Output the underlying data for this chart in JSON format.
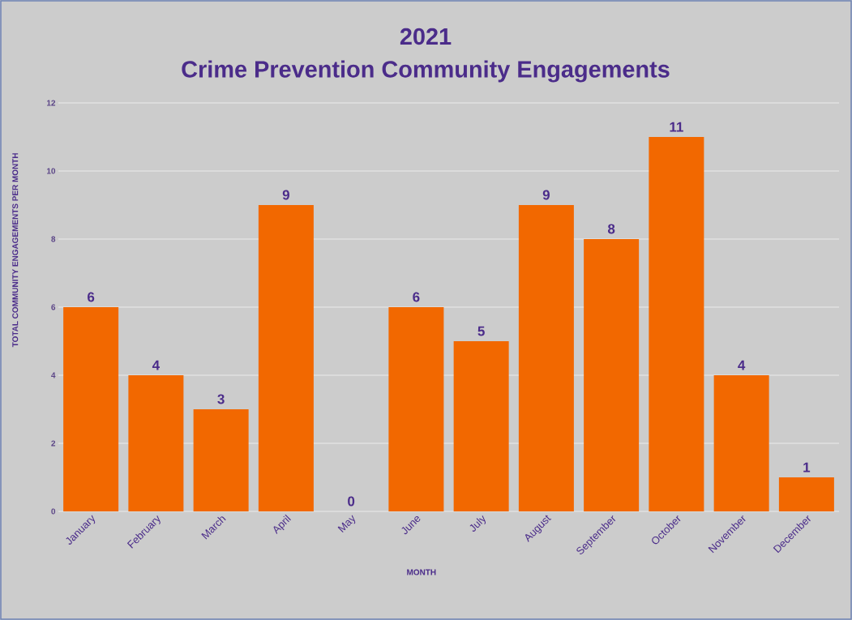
{
  "chart_data": {
    "type": "bar",
    "title": "2021",
    "subtitle": "Crime Prevention Community Engagements",
    "xlabel": "MONTH",
    "ylabel": "TOTAL COMMUNITY ENGAGEMENTS PER MONTH",
    "categories": [
      "January",
      "February",
      "March",
      "April",
      "May",
      "June",
      "July",
      "August",
      "September",
      "October",
      "November",
      "December"
    ],
    "values": [
      6,
      4,
      3,
      9,
      0,
      6,
      5,
      9,
      8,
      11,
      4,
      1
    ],
    "color": "#f26800",
    "ylim": [
      0,
      12
    ],
    "yticks": [
      0,
      2,
      4,
      6,
      8,
      10,
      12
    ],
    "grid": "y",
    "data_labels": true
  }
}
